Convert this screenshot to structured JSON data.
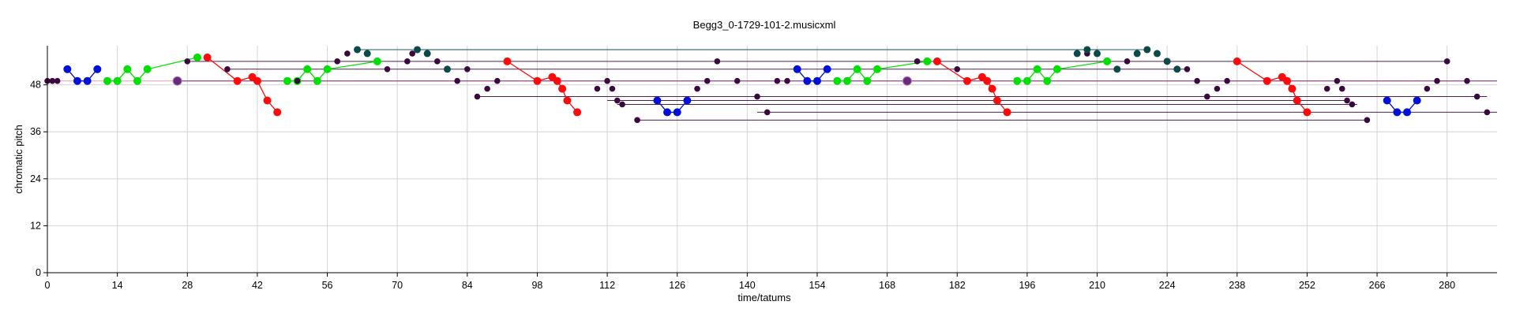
{
  "chart_data": {
    "type": "scatter",
    "title": "Begg3_0-1729-101-2.musicxml",
    "xlabel": "time/tatums",
    "ylabel": "chromatic pitch",
    "xlim": [
      0,
      290
    ],
    "ylim": [
      0,
      58
    ],
    "x_ticks": [
      "0",
      "14",
      "28",
      "42",
      "56",
      "70",
      "84",
      "98",
      "112",
      "126",
      "140",
      "154",
      "168",
      "182",
      "196",
      "210",
      "224",
      "238",
      "252",
      "266",
      "280"
    ],
    "y_ticks": [
      "0",
      "12",
      "24",
      "36",
      "48"
    ],
    "grid": true,
    "colors": {
      "blue": "#0010d8",
      "green": "#00e000",
      "red": "#ff0a0a",
      "dark_purple": "#3a0a3e",
      "dark_teal": "#0c4a4a",
      "hold_purple": "#6a2a7a",
      "pink_line": "#f0a0b0"
    },
    "segments": [
      {
        "color": "blue",
        "points": [
          [
            4,
            52
          ],
          [
            6,
            49
          ],
          [
            8,
            49
          ],
          [
            10,
            52
          ]
        ]
      },
      {
        "color": "green",
        "points": [
          [
            12,
            49
          ],
          [
            14,
            49
          ],
          [
            16,
            52
          ],
          [
            18,
            49
          ],
          [
            20,
            52
          ],
          [
            30,
            55
          ]
        ]
      },
      {
        "color": "red",
        "points": [
          [
            32,
            55
          ],
          [
            38,
            49
          ],
          [
            41,
            50
          ],
          [
            42,
            49
          ],
          [
            44,
            44
          ],
          [
            46,
            41
          ]
        ]
      },
      {
        "color": "green",
        "points": [
          [
            48,
            49
          ],
          [
            50,
            49
          ],
          [
            52,
            52
          ],
          [
            54,
            49
          ],
          [
            56,
            52
          ],
          [
            66,
            54
          ]
        ]
      },
      {
        "color": "red",
        "points": [
          [
            92,
            54
          ],
          [
            98,
            49
          ],
          [
            101,
            50
          ],
          [
            102,
            49
          ],
          [
            103,
            47
          ],
          [
            104,
            44
          ],
          [
            106,
            41
          ]
        ]
      },
      {
        "color": "blue",
        "points": [
          [
            122,
            44
          ],
          [
            124,
            41
          ],
          [
            126,
            41
          ],
          [
            128,
            44
          ]
        ]
      },
      {
        "color": "blue",
        "points": [
          [
            150,
            52
          ],
          [
            152,
            49
          ],
          [
            154,
            49
          ],
          [
            156,
            52
          ]
        ]
      },
      {
        "color": "green",
        "points": [
          [
            158,
            49
          ],
          [
            160,
            49
          ],
          [
            162,
            52
          ],
          [
            164,
            49
          ],
          [
            166,
            52
          ],
          [
            176,
            54
          ]
        ]
      },
      {
        "color": "red",
        "points": [
          [
            178,
            54
          ],
          [
            184,
            49
          ],
          [
            187,
            50
          ],
          [
            188,
            49
          ],
          [
            189,
            47
          ],
          [
            190,
            44
          ],
          [
            192,
            41
          ]
        ]
      },
      {
        "color": "green",
        "points": [
          [
            194,
            49
          ],
          [
            196,
            49
          ],
          [
            198,
            52
          ],
          [
            200,
            49
          ],
          [
            202,
            52
          ],
          [
            212,
            54
          ]
        ]
      },
      {
        "color": "red",
        "points": [
          [
            238,
            54
          ],
          [
            244,
            49
          ],
          [
            247,
            50
          ],
          [
            248,
            49
          ],
          [
            249,
            47
          ],
          [
            250,
            44
          ],
          [
            252,
            41
          ]
        ]
      },
      {
        "color": "blue",
        "points": [
          [
            268,
            44
          ],
          [
            270,
            41
          ],
          [
            272,
            41
          ],
          [
            274,
            44
          ]
        ]
      }
    ],
    "hold_lines": [
      {
        "color": "pink_line",
        "x": [
          0,
          290
        ],
        "y": 49
      },
      {
        "color": "hold_purple",
        "x": [
          26,
          290
        ],
        "y": 49
      },
      {
        "color": "dark_teal",
        "x": [
          62,
          220
        ],
        "y": 57
      },
      {
        "color": "dark_teal",
        "x": [
          74,
          210
        ],
        "y": 57
      },
      {
        "color": "dark_purple",
        "x": [
          28,
          280
        ],
        "y": 54
      },
      {
        "color": "dark_purple",
        "x": [
          36,
          228
        ],
        "y": 52
      },
      {
        "color": "dark_purple",
        "x": [
          86,
          288
        ],
        "y": 45
      },
      {
        "color": "dark_purple",
        "x": [
          112,
          260
        ],
        "y": 44
      },
      {
        "color": "dark_purple",
        "x": [
          114,
          262
        ],
        "y": 43
      },
      {
        "color": "dark_purple",
        "x": [
          142,
          290
        ],
        "y": 41
      },
      {
        "color": "dark_purple",
        "x": [
          118,
          264
        ],
        "y": 39
      }
    ],
    "dark_points": [
      {
        "color": "dark_purple",
        "points": [
          [
            0,
            49
          ],
          [
            1,
            49
          ],
          [
            2,
            49
          ],
          [
            28,
            54
          ],
          [
            36,
            52
          ],
          [
            50,
            49
          ],
          [
            58,
            54
          ],
          [
            60,
            56
          ],
          [
            64,
            56
          ],
          [
            68,
            52
          ],
          [
            72,
            54
          ],
          [
            73,
            56
          ],
          [
            78,
            54
          ],
          [
            82,
            49
          ],
          [
            84,
            52
          ],
          [
            86,
            45
          ],
          [
            88,
            47
          ],
          [
            90,
            49
          ],
          [
            110,
            47
          ],
          [
            112,
            49
          ],
          [
            113,
            47
          ],
          [
            114,
            44
          ],
          [
            115,
            43
          ],
          [
            118,
            39
          ],
          [
            130,
            47
          ],
          [
            132,
            49
          ],
          [
            134,
            54
          ],
          [
            138,
            49
          ],
          [
            142,
            45
          ],
          [
            144,
            41
          ],
          [
            146,
            49
          ],
          [
            148,
            49
          ],
          [
            174,
            54
          ],
          [
            182,
            52
          ],
          [
            208,
            56
          ],
          [
            216,
            54
          ],
          [
            228,
            52
          ],
          [
            230,
            49
          ],
          [
            232,
            45
          ],
          [
            234,
            47
          ],
          [
            236,
            49
          ],
          [
            256,
            47
          ],
          [
            258,
            49
          ],
          [
            259,
            47
          ],
          [
            260,
            44
          ],
          [
            261,
            43
          ],
          [
            264,
            39
          ],
          [
            276,
            47
          ],
          [
            278,
            49
          ],
          [
            280,
            54
          ],
          [
            284,
            49
          ],
          [
            286,
            45
          ],
          [
            288,
            41
          ]
        ]
      },
      {
        "color": "dark_teal",
        "points": [
          [
            62,
            57
          ],
          [
            64,
            56
          ],
          [
            74,
            57
          ],
          [
            76,
            56
          ],
          [
            80,
            52
          ],
          [
            206,
            56
          ],
          [
            208,
            57
          ],
          [
            210,
            56
          ],
          [
            214,
            52
          ],
          [
            218,
            56
          ],
          [
            220,
            57
          ],
          [
            222,
            56
          ],
          [
            226,
            52
          ],
          [
            224,
            54
          ]
        ]
      },
      {
        "color": "hold_purple",
        "points": [
          [
            26,
            49
          ],
          [
            172,
            49
          ]
        ]
      }
    ]
  }
}
